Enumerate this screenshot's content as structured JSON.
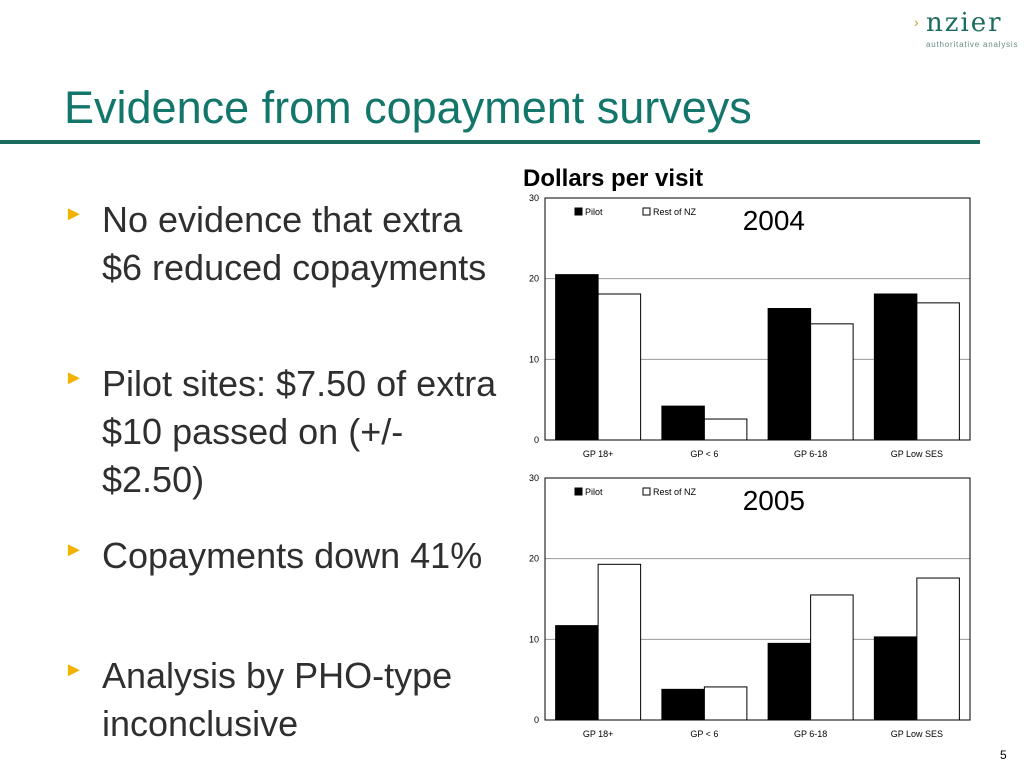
{
  "logo": {
    "wordmark": "nzier",
    "tagline": "authoritative analysis",
    "mark": "›"
  },
  "slide": {
    "title": "Evidence from copayment surveys",
    "bullets": [
      {
        "text": "No evidence that extra $6 reduced copayments"
      },
      {
        "text": "Pilot sites: $7.50 of extra $10 passed on (+/- $2.50)"
      },
      {
        "text": "Copayments down 41%"
      },
      {
        "text": "Analysis by PHO-type inconclusive"
      }
    ],
    "bullet_marker": "►",
    "page_number": "5"
  },
  "chart_heading": "Dollars per visit",
  "colors": {
    "accent": "#13766a",
    "rule": "#1b6b5e",
    "bullet": "#f3b100",
    "pilot": "#000000",
    "rest": "#ffffff"
  },
  "chart_data": [
    {
      "type": "bar",
      "title": "2004",
      "categories": [
        "GP 18+",
        "GP < 6",
        "GP 6-18",
        "GP Low SES"
      ],
      "series": [
        {
          "name": "Pilot",
          "values": [
            20.5,
            4.2,
            16.3,
            18.1
          ],
          "color": "#000000"
        },
        {
          "name": "Rest of NZ",
          "values": [
            18.1,
            2.6,
            14.4,
            17.0
          ],
          "color": "#ffffff"
        }
      ],
      "ylim": [
        0,
        30
      ],
      "yticks": [
        "0",
        "10",
        "20",
        "30"
      ],
      "grid": true,
      "legend": "top-left"
    },
    {
      "type": "bar",
      "title": "2005",
      "categories": [
        "GP 18+",
        "GP < 6",
        "GP 6-18",
        "GP Low SES"
      ],
      "series": [
        {
          "name": "Pilot",
          "values": [
            11.7,
            3.8,
            9.5,
            10.3
          ],
          "color": "#000000"
        },
        {
          "name": "Rest of NZ",
          "values": [
            19.3,
            4.1,
            15.5,
            17.6
          ],
          "color": "#ffffff"
        }
      ],
      "ylim": [
        0,
        30
      ],
      "yticks": [
        "0",
        "10",
        "20",
        "30"
      ],
      "grid": true,
      "legend": "top-left"
    }
  ]
}
